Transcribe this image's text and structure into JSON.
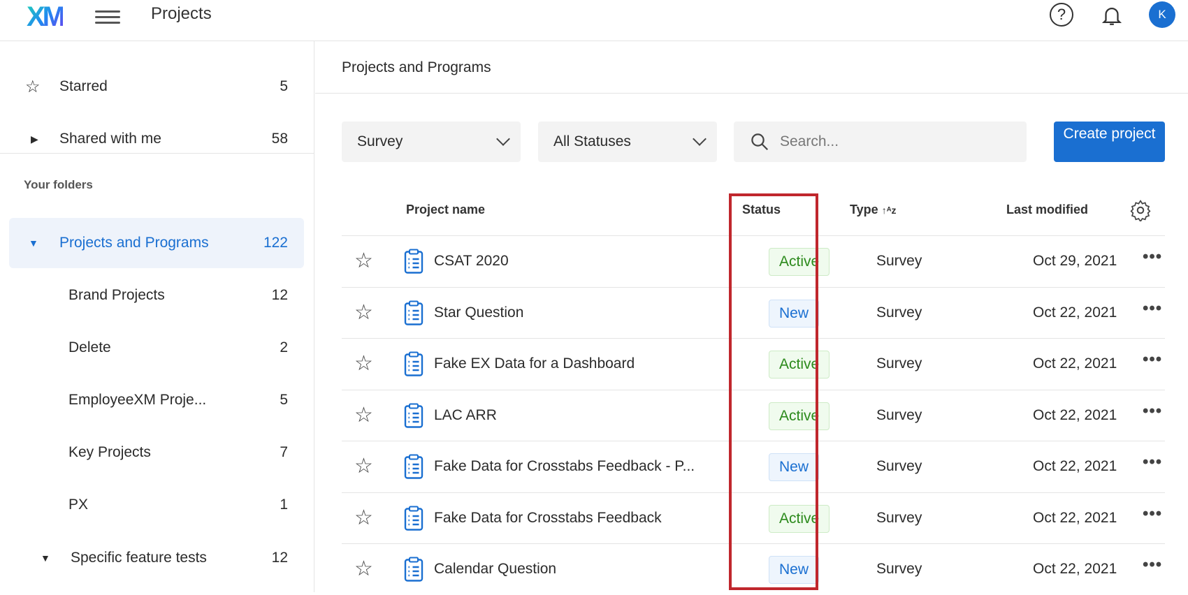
{
  "header": {
    "logo": "XM",
    "title": "Projects",
    "help": "?",
    "avatar": "K"
  },
  "sidebar": {
    "starred": {
      "label": "Starred",
      "count": "5"
    },
    "shared": {
      "label": "Shared with me",
      "count": "58"
    },
    "folders_heading": "Your folders",
    "selected": {
      "label": "Projects and Programs",
      "count": "122"
    },
    "items": [
      {
        "label": "Brand Projects",
        "count": "12"
      },
      {
        "label": "Delete",
        "count": "2"
      },
      {
        "label": "EmployeeXM Proje...",
        "count": "5"
      },
      {
        "label": "Key Projects",
        "count": "7"
      },
      {
        "label": "PX",
        "count": "1"
      }
    ],
    "specific": {
      "label": "Specific feature tests",
      "count": "12"
    }
  },
  "main": {
    "breadcrumb": "Projects and Programs",
    "filters": {
      "type": "Survey",
      "status": "All Statuses",
      "search_placeholder": "Search..."
    },
    "create_label": "Create project",
    "columns": {
      "name": "Project name",
      "status": "Status",
      "type": "Type",
      "modified": "Last modified"
    },
    "rows": [
      {
        "name": "CSAT 2020",
        "status": "Active",
        "type": "Survey",
        "modified": "Oct 29, 2021"
      },
      {
        "name": "Star Question",
        "status": "New",
        "type": "Survey",
        "modified": "Oct 22, 2021"
      },
      {
        "name": "Fake EX Data for a Dashboard",
        "status": "Active",
        "type": "Survey",
        "modified": "Oct 22, 2021"
      },
      {
        "name": "LAC ARR",
        "status": "Active",
        "type": "Survey",
        "modified": "Oct 22, 2021"
      },
      {
        "name": "Fake Data for Crosstabs Feedback - P...",
        "status": "New",
        "type": "Survey",
        "modified": "Oct 22, 2021"
      },
      {
        "name": "Fake Data for Crosstabs Feedback",
        "status": "Active",
        "type": "Survey",
        "modified": "Oct 22, 2021"
      },
      {
        "name": "Calendar Question",
        "status": "New",
        "type": "Survey",
        "modified": "Oct 22, 2021"
      }
    ]
  },
  "colors": {
    "accent": "#1a6fd1",
    "active": "#2c8a1c",
    "highlight": "#c0272d"
  }
}
